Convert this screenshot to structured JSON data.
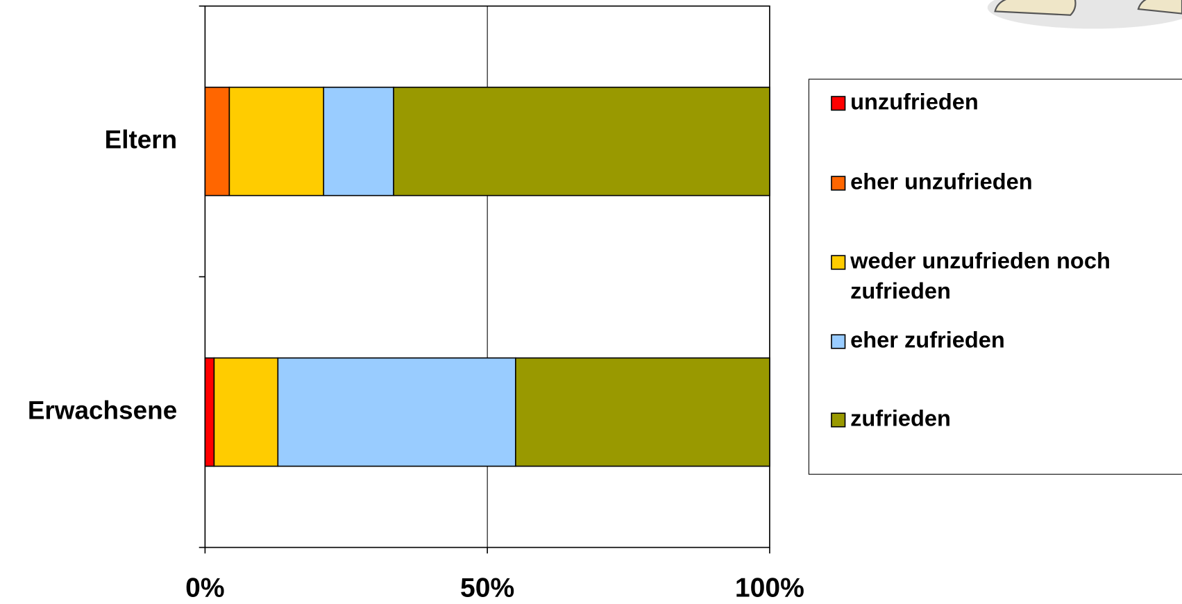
{
  "chart_data": {
    "type": "stacked_barh",
    "categories": [
      "Eltern",
      "Erwachsene"
    ],
    "series": [
      {
        "name": "unzufrieden",
        "color": "#ff0000",
        "values": [
          0,
          1.6
        ]
      },
      {
        "name": "eher unzufrieden",
        "color": "#ff6600",
        "values": [
          4.3,
          0
        ]
      },
      {
        "name": "weder unzufrieden noch zufrieden",
        "color": "#ffcc00",
        "values": [
          16.7,
          11.3
        ]
      },
      {
        "name": "eher zufrieden",
        "color": "#99ccff",
        "values": [
          12.4,
          42.1
        ]
      },
      {
        "name": "zufrieden",
        "color": "#999900",
        "values": [
          66.6,
          45.0
        ]
      }
    ],
    "xlim": [
      0,
      100
    ],
    "xticks": [
      {
        "value": 0,
        "label": "0%"
      },
      {
        "value": 50,
        "label": "50%"
      },
      {
        "value": 100,
        "label": "100%"
      }
    ],
    "grid": true,
    "legend": "right"
  }
}
